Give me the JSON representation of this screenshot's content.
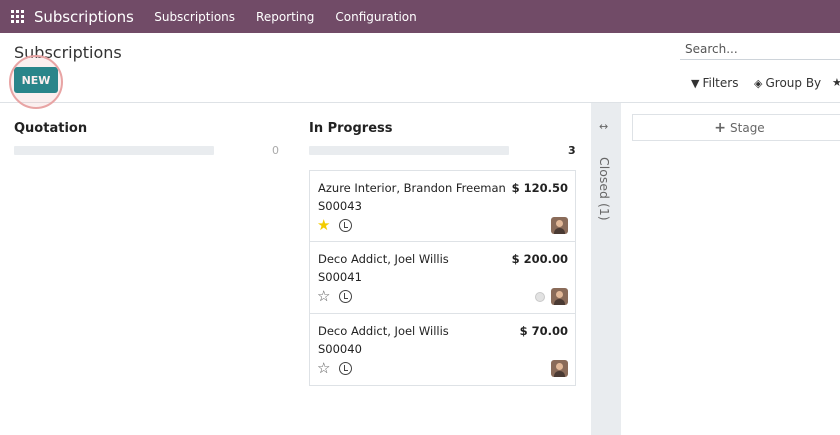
{
  "navbar": {
    "app_title": "Subscriptions",
    "menu": [
      "Subscriptions",
      "Reporting",
      "Configuration"
    ]
  },
  "control_panel": {
    "title": "Subscriptions",
    "new_label": "NEW",
    "search_placeholder": "Search...",
    "filters_label": "Filters",
    "groupby_label": "Group By"
  },
  "columns": [
    {
      "title": "Quotation",
      "count": "0"
    },
    {
      "title": "In Progress",
      "count": "3"
    }
  ],
  "cards": [
    {
      "name": "Azure Interior, Brandon Freeman",
      "ref": "S00043",
      "amount": "$ 120.50",
      "starred": true
    },
    {
      "name": "Deco Addict, Joel Willis",
      "ref": "S00041",
      "amount": "$ 200.00",
      "starred": false
    },
    {
      "name": "Deco Addict, Joel Willis",
      "ref": "S00040",
      "amount": "$ 70.00",
      "starred": false
    }
  ],
  "folded_column": {
    "label": "Closed (1)"
  },
  "add_stage_label": "Stage",
  "colors": {
    "navbar": "#714b67",
    "primary": "#017e84",
    "star": "#f3cc00"
  }
}
